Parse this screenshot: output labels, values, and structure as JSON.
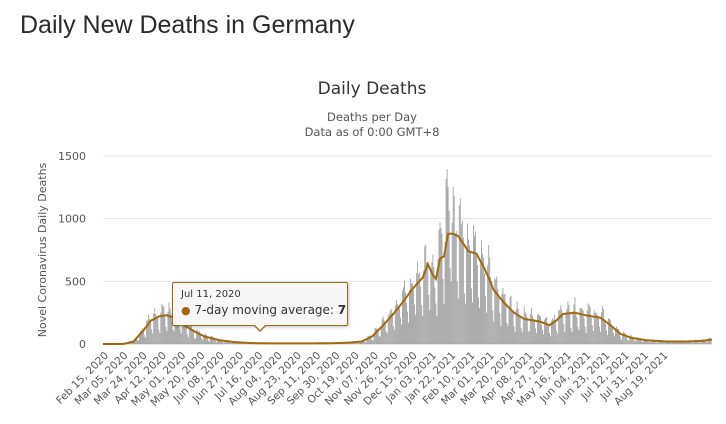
{
  "page": {
    "title": "Daily New Deaths in Germany"
  },
  "chart_data": {
    "type": "bar",
    "title": "Daily Deaths",
    "subtitle": "Deaths per Day",
    "subtitle2": "Data as of 0:00 GMT+8",
    "ylabel": "Novel Coronavirus Daily Deaths",
    "xlabel": "",
    "ylim": [
      0,
      1500
    ],
    "yticks": [
      0,
      500,
      1000,
      1500
    ],
    "grid": true,
    "x_tick_labels": [
      "Feb 15, 2020",
      "Mar 05, 2020",
      "Mar 24, 2020",
      "Apr 12, 2020",
      "May 01, 2020",
      "May 20, 2020",
      "Jun 08, 2020",
      "Jun 27, 2020",
      "Jul 16, 2020",
      "Aug 04, 2020",
      "Aug 23, 2020",
      "Sep 11, 2020",
      "Sep 30, 2020",
      "Oct 19, 2020",
      "Nov 07, 2020",
      "Nov 26, 2020",
      "Dec 15, 2020",
      "Jan 03, 2021",
      "Jan 22, 2021",
      "Feb 10, 2021",
      "Mar 01, 2021",
      "Mar 20, 2021",
      "Apr 08, 2021",
      "Apr 27, 2021",
      "May 16, 2021",
      "Jun 04, 2021",
      "Jun 23, 2021",
      "Jul 12, 2021",
      "Jul 31, 2021",
      "Aug 19, 2021"
    ],
    "start_date": "Feb 15, 2020",
    "series": [
      {
        "name": "Daily Deaths",
        "color": "#999999",
        "type": "bar"
      },
      {
        "name": "7-day moving average",
        "color": "#a06a14",
        "type": "line"
      }
    ],
    "moving_average_points": [
      [
        0,
        0
      ],
      [
        20,
        0
      ],
      [
        30,
        20
      ],
      [
        40,
        110
      ],
      [
        47,
        185
      ],
      [
        55,
        220
      ],
      [
        62,
        230
      ],
      [
        70,
        210
      ],
      [
        80,
        150
      ],
      [
        90,
        100
      ],
      [
        100,
        60
      ],
      [
        115,
        30
      ],
      [
        130,
        15
      ],
      [
        146,
        7
      ],
      [
        170,
        5
      ],
      [
        200,
        5
      ],
      [
        225,
        6
      ],
      [
        240,
        10
      ],
      [
        255,
        20
      ],
      [
        265,
        60
      ],
      [
        275,
        140
      ],
      [
        285,
        230
      ],
      [
        295,
        330
      ],
      [
        305,
        440
      ],
      [
        315,
        530
      ],
      [
        320,
        640
      ],
      [
        325,
        550
      ],
      [
        328,
        520
      ],
      [
        332,
        680
      ],
      [
        336,
        700
      ],
      [
        340,
        880
      ],
      [
        345,
        880
      ],
      [
        350,
        860
      ],
      [
        355,
        800
      ],
      [
        360,
        740
      ],
      [
        368,
        720
      ],
      [
        376,
        600
      ],
      [
        385,
        430
      ],
      [
        395,
        330
      ],
      [
        405,
        250
      ],
      [
        415,
        200
      ],
      [
        430,
        180
      ],
      [
        440,
        150
      ],
      [
        447,
        190
      ],
      [
        453,
        240
      ],
      [
        465,
        250
      ],
      [
        475,
        230
      ],
      [
        490,
        210
      ],
      [
        500,
        150
      ],
      [
        510,
        80
      ],
      [
        520,
        50
      ],
      [
        535,
        30
      ],
      [
        555,
        20
      ],
      [
        575,
        20
      ],
      [
        590,
        25
      ],
      [
        600,
        35
      ]
    ],
    "tooltip": {
      "date": "Jul 11, 2020",
      "label": "7-day moving average: ",
      "value": "7"
    }
  }
}
